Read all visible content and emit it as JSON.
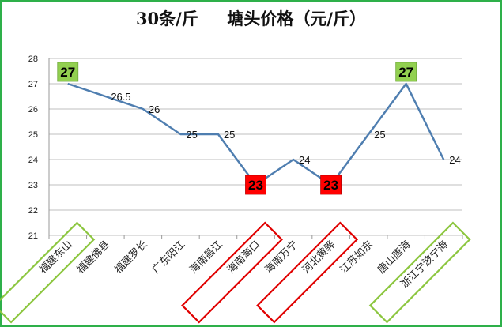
{
  "title": "30条/斤     塘头价格（元/斤）",
  "chart_data": {
    "type": "line",
    "title": "30条/斤     塘头价格（元/斤）",
    "categories": [
      "福建东山",
      "福建佛县",
      "福建罗长",
      "广东阳江",
      "海南昌江",
      "海南海口",
      "海南万宁",
      "河北黄骅",
      "江苏如东",
      "唐山唐海",
      "浙江宁波宁海"
    ],
    "values": [
      27,
      26.5,
      26,
      25,
      25,
      23,
      24,
      23,
      25,
      27,
      24
    ],
    "value_labels": [
      "27",
      "26.5",
      "26",
      "25",
      "25",
      "23",
      "24",
      "23",
      "25",
      "27",
      "24"
    ],
    "ylim": [
      21,
      28
    ],
    "yticks": [
      21,
      22,
      23,
      24,
      25,
      26,
      27,
      28
    ],
    "xlabel": "",
    "ylabel": "",
    "grid": true,
    "line_color": "#4f7eb0",
    "highlights": [
      {
        "index": 0,
        "style": "green"
      },
      {
        "index": 5,
        "style": "red"
      },
      {
        "index": 7,
        "style": "red"
      },
      {
        "index": 9,
        "style": "green"
      }
    ],
    "category_boxes": [
      {
        "index": 0,
        "color": "#8cc63f"
      },
      {
        "index": 5,
        "color": "#e00000"
      },
      {
        "index": 7,
        "color": "#e00000"
      },
      {
        "index": 10,
        "color": "#8cc63f"
      }
    ]
  },
  "colors": {
    "frame": "#2eb04a",
    "green_fill": "#92d050",
    "red_fill": "#ff0000",
    "green_box": "#8cc63f",
    "red_box": "#e00000",
    "grid": "#bfbfbf"
  }
}
